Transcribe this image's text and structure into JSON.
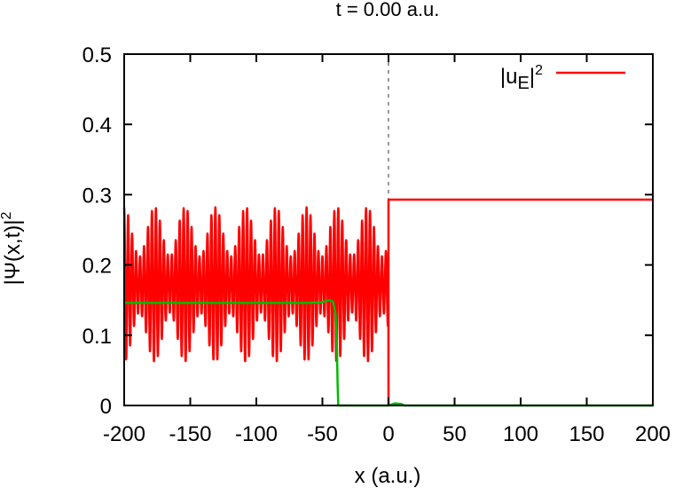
{
  "chart_data": {
    "type": "line",
    "title": "t =  0.00 a.u.",
    "xlabel": "x (a.u.)",
    "ylabel": "|Ψ(x,t)|",
    "ylabel_sup": "2",
    "xlim": [
      -200,
      200
    ],
    "ylim": [
      0,
      0.5
    ],
    "x_ticks": [
      "-200",
      "-150",
      "-100",
      "-50",
      "0",
      "50",
      "100",
      "150",
      "200"
    ],
    "y_ticks": [
      "0",
      "0.1",
      "0.2",
      "0.3",
      "0.4",
      "0.5"
    ],
    "x_tick_values": [
      -200,
      -150,
      -100,
      -50,
      0,
      50,
      100,
      150,
      200
    ],
    "y_tick_values": [
      0,
      0.1,
      0.2,
      0.3,
      0.4,
      0.5
    ],
    "reference_line": {
      "x": 0,
      "style": "dashed",
      "color": "#999999"
    },
    "legend": {
      "placement": "top-right",
      "label_base": "|u",
      "label_sub": "E",
      "label_end": "|",
      "label_sup": "2"
    },
    "series": [
      {
        "name": "|u_E|^2",
        "color": "#ff0000",
        "segments": [
          {
            "kind": "oscillation",
            "x_range": [
              -200,
              0
            ],
            "center": 0.172,
            "fast_amplitude": 0.075,
            "envelope_amplitude": 0.035,
            "fast_period": 3.0,
            "envelope_period": 23.0
          },
          {
            "kind": "constant",
            "x_range": [
              0,
              200
            ],
            "value": 0.293
          }
        ]
      },
      {
        "color": "#00bb00",
        "points": [
          [
            -200,
            0.146
          ],
          [
            -150,
            0.146
          ],
          [
            -100,
            0.146
          ],
          [
            -60,
            0.146
          ],
          [
            -50,
            0.147
          ],
          [
            -45,
            0.15
          ],
          [
            -42,
            0.148
          ],
          [
            -40,
            0.13
          ],
          [
            -39,
            0.08
          ],
          [
            -38.5,
            0.03
          ],
          [
            -38,
            0.0
          ],
          [
            0,
            0.0
          ],
          [
            5,
            0.003
          ],
          [
            10,
            0.002
          ],
          [
            12,
            0.0
          ],
          [
            200,
            0.0
          ]
        ]
      }
    ]
  }
}
